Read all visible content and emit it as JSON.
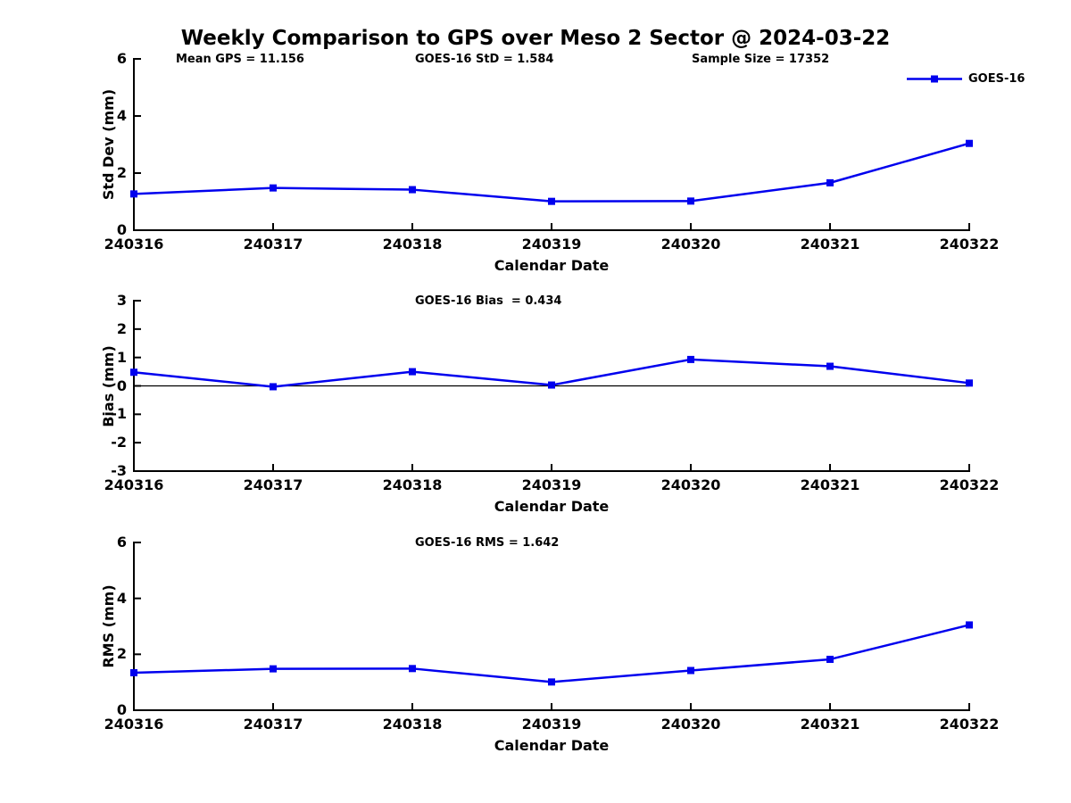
{
  "title": "Weekly Comparison to GPS over Meso 2 Sector @ 2024-03-22",
  "legend": {
    "label": "GOES-16"
  },
  "colors": {
    "series": "#0000EE",
    "axis": "#000000",
    "background": "#ffffff"
  },
  "chart_data": [
    {
      "type": "line",
      "name": "std-dev",
      "annotations": [
        {
          "text": "Mean GPS = 11.156",
          "x": 197
        },
        {
          "text": "GOES-16 StD = 1.584",
          "x": 465
        },
        {
          "text": "Sample Size = 17352",
          "x": 775
        }
      ],
      "categories": [
        "240316",
        "240317",
        "240318",
        "240319",
        "240320",
        "240321",
        "240322"
      ],
      "series": [
        {
          "name": "GOES-16",
          "values": [
            1.27,
            1.48,
            1.42,
            1.01,
            1.02,
            1.66,
            3.04
          ]
        }
      ],
      "xlabel": "Calendar Date",
      "ylabel": "Std Dev (mm)",
      "ylim": [
        0,
        6
      ],
      "yticks": [
        0,
        2,
        4,
        6
      ],
      "zero_line": false,
      "grid": false,
      "legend_position": "top-right-outside",
      "marker": "square",
      "line_color": "#0000EE"
    },
    {
      "type": "line",
      "name": "bias",
      "annotations": [
        {
          "text": "GOES-16 Bias  = 0.434",
          "x": 465
        }
      ],
      "categories": [
        "240316",
        "240317",
        "240318",
        "240319",
        "240320",
        "240321",
        "240322"
      ],
      "series": [
        {
          "name": "GOES-16",
          "values": [
            0.48,
            -0.03,
            0.5,
            0.03,
            0.93,
            0.69,
            0.1
          ]
        }
      ],
      "xlabel": "Calendar Date",
      "ylabel": "Bias (mm)",
      "ylim": [
        -3,
        3
      ],
      "yticks": [
        -3,
        -2,
        -1,
        0,
        1,
        2,
        3
      ],
      "zero_line": true,
      "grid": false,
      "legend_position": "none",
      "marker": "square",
      "line_color": "#0000EE"
    },
    {
      "type": "line",
      "name": "rms",
      "annotations": [
        {
          "text": "GOES-16 RMS = 1.642",
          "x": 465
        }
      ],
      "categories": [
        "240316",
        "240317",
        "240318",
        "240319",
        "240320",
        "240321",
        "240322"
      ],
      "series": [
        {
          "name": "GOES-16",
          "values": [
            1.34,
            1.48,
            1.49,
            1.01,
            1.42,
            1.82,
            3.05
          ]
        }
      ],
      "xlabel": "Calendar Date",
      "ylabel": "RMS (mm)",
      "ylim": [
        0,
        6
      ],
      "yticks": [
        0,
        2,
        4,
        6
      ],
      "zero_line": false,
      "grid": false,
      "legend_position": "none",
      "marker": "square",
      "line_color": "#0000EE"
    }
  ]
}
